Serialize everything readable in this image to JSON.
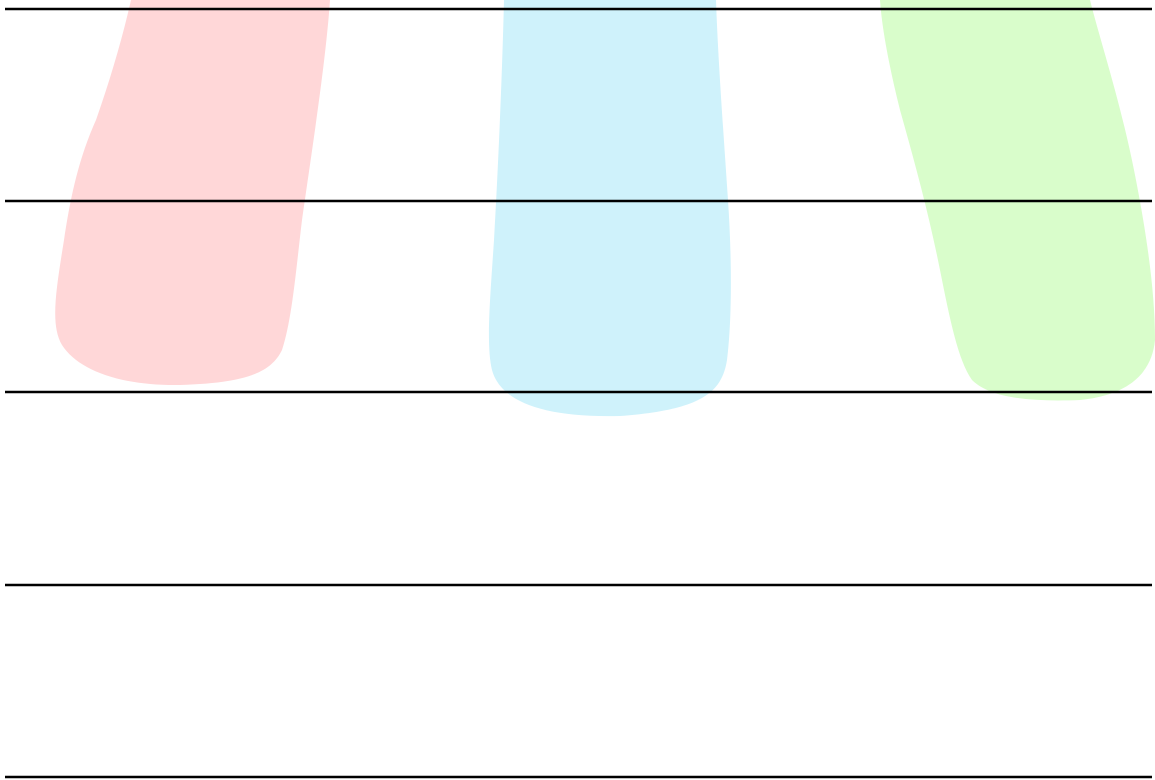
{
  "background_color": "#ffffff",
  "line_color": "#000000",
  "rule_line_count": 5,
  "stripes": [
    {
      "name": "red",
      "color": "#ffd7d8"
    },
    {
      "name": "blue",
      "color": "#cff2fb"
    },
    {
      "name": "green",
      "color": "#d9fdcb"
    }
  ]
}
